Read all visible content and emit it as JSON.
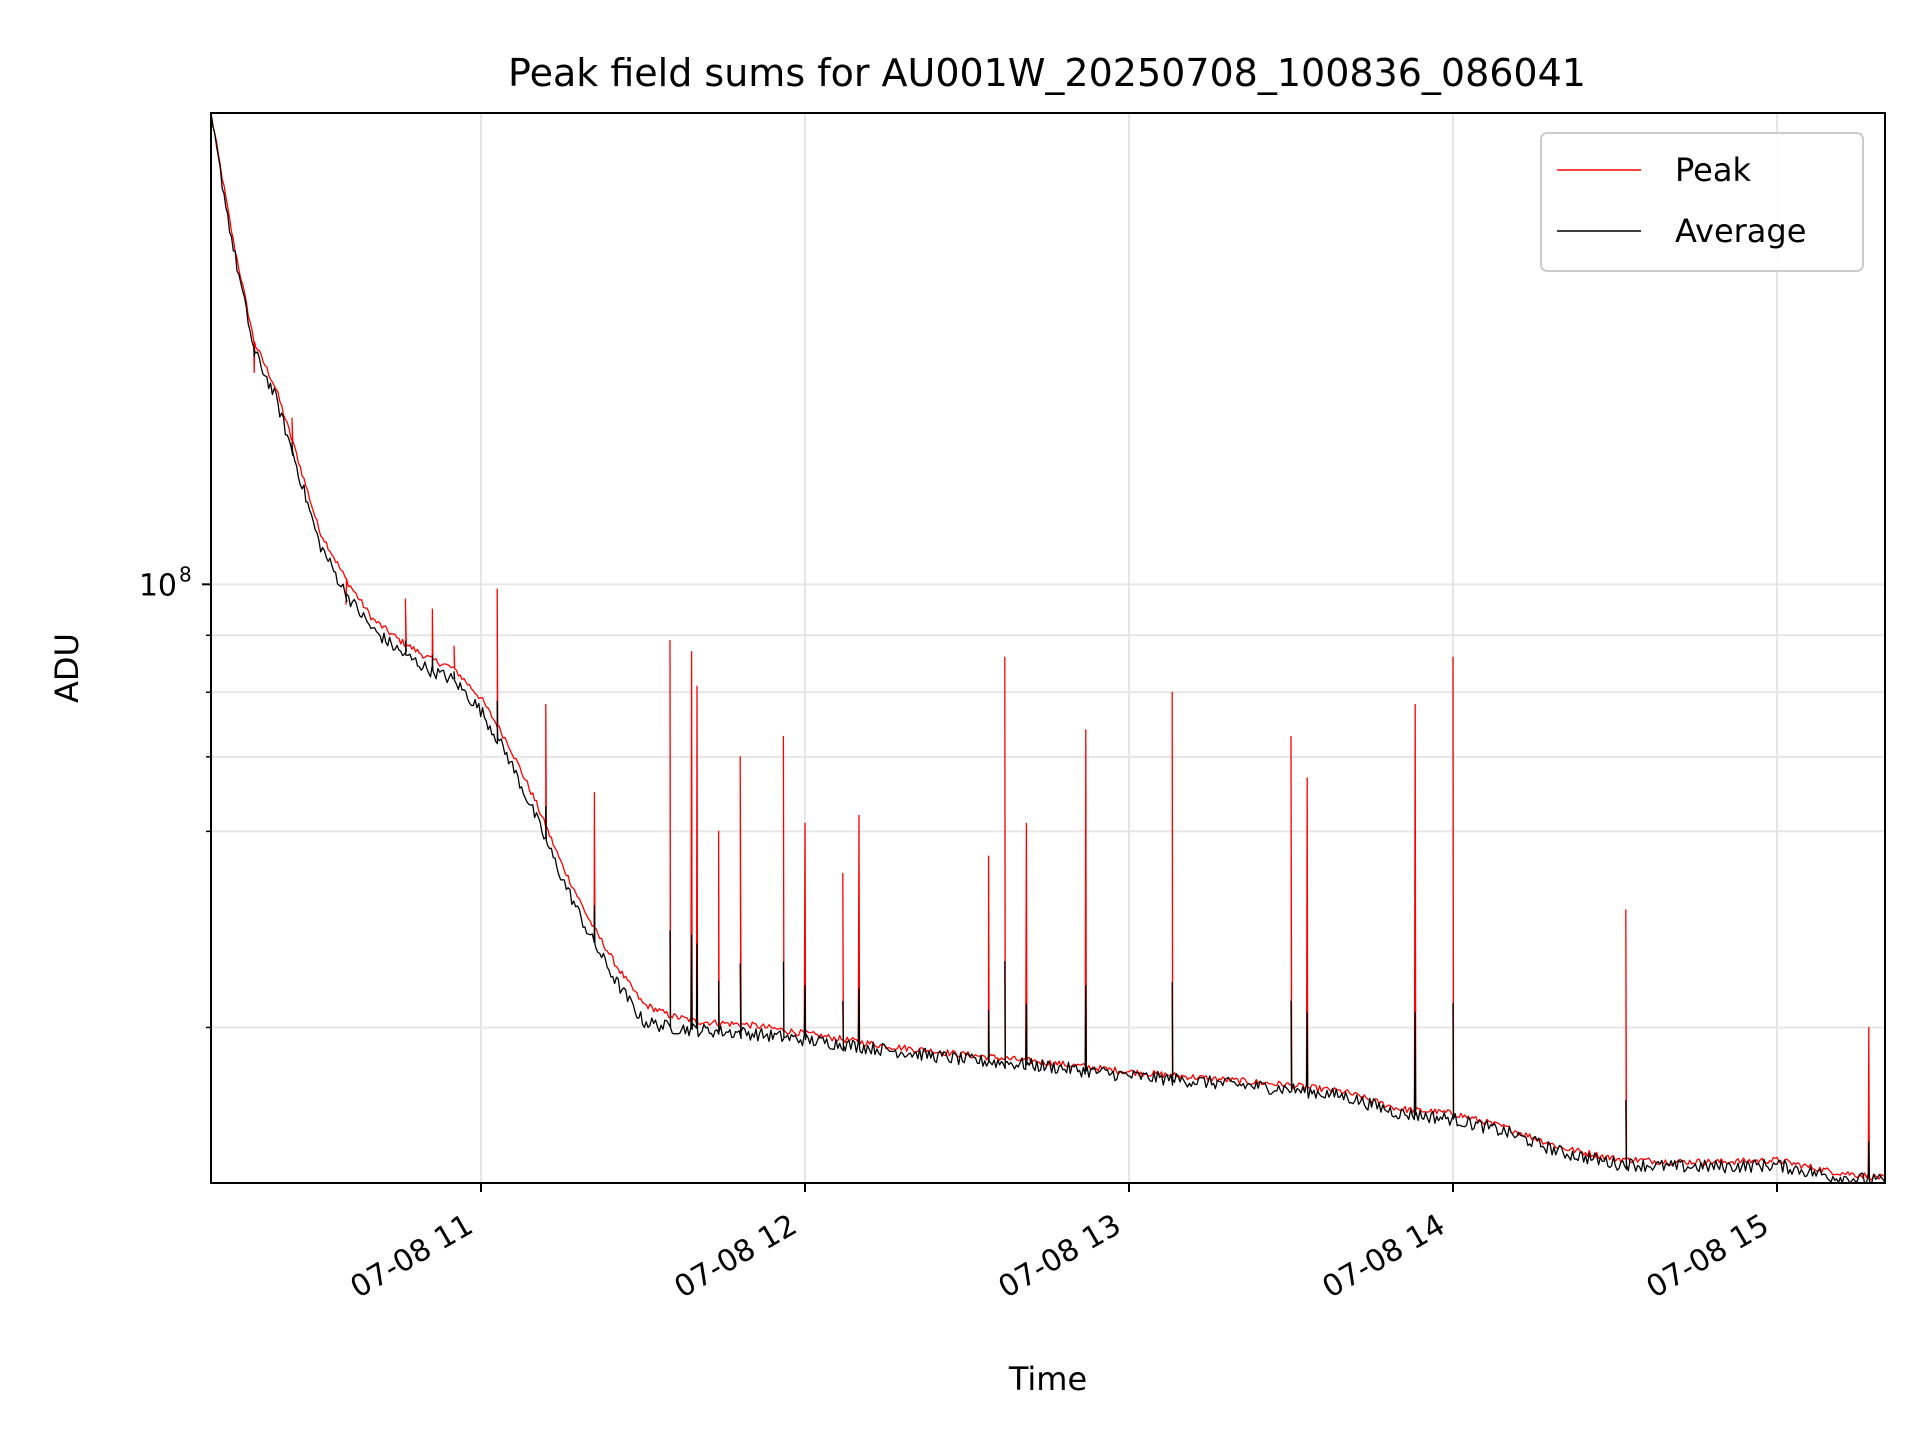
{
  "chart_data": {
    "type": "line",
    "title": "Peak field sums for AU001W_20250708_100836_086041",
    "xlabel": "Time",
    "ylabel": "ADU",
    "yscale": "log",
    "xlim": [
      "2025-07-08 10:10",
      "2025-07-08 15:20"
    ],
    "ylim": [
      29000000,
      265000000
    ],
    "x_ticks": [
      {
        "value": "2025-07-08 11:00",
        "label": "07-08 11"
      },
      {
        "value": "2025-07-08 12:00",
        "label": "07-08 12"
      },
      {
        "value": "2025-07-08 13:00",
        "label": "07-08 13"
      },
      {
        "value": "2025-07-08 14:00",
        "label": "07-08 14"
      },
      {
        "value": "2025-07-08 15:00",
        "label": "07-08 15"
      }
    ],
    "y_ticks": [
      {
        "value": 100000000,
        "label": "10",
        "exponent": "8"
      }
    ],
    "y_minor_ticks": [
      40000000,
      60000000,
      70000000,
      80000000,
      90000000
    ],
    "grid": true,
    "legend": {
      "position": "top-right",
      "entries": [
        "Peak",
        "Average"
      ]
    },
    "colors": {
      "peak": "#ff0000",
      "average": "#000000",
      "grid": "#e6e6e6"
    },
    "series": [
      {
        "name": "Peak",
        "x": [
          "2025-07-08 10:10",
          "2025-07-08 10:14",
          "2025-07-08 10:18",
          "2025-07-08 10:22",
          "2025-07-08 10:26",
          "2025-07-08 10:30",
          "2025-07-08 10:35",
          "2025-07-08 10:40",
          "2025-07-08 10:45",
          "2025-07-08 10:50",
          "2025-07-08 10:55",
          "2025-07-08 11:00",
          "2025-07-08 11:05",
          "2025-07-08 11:10",
          "2025-07-08 11:15",
          "2025-07-08 11:20",
          "2025-07-08 11:25",
          "2025-07-08 11:30",
          "2025-07-08 11:35",
          "2025-07-08 11:40",
          "2025-07-08 11:50",
          "2025-07-08 12:00",
          "2025-07-08 12:15",
          "2025-07-08 12:30",
          "2025-07-08 12:45",
          "2025-07-08 13:00",
          "2025-07-08 13:15",
          "2025-07-08 13:30",
          "2025-07-08 13:40",
          "2025-07-08 13:50",
          "2025-07-08 14:00",
          "2025-07-08 14:10",
          "2025-07-08 14:20",
          "2025-07-08 14:30",
          "2025-07-08 14:40",
          "2025-07-08 14:50",
          "2025-07-08 15:00",
          "2025-07-08 15:10",
          "2025-07-08 15:20"
        ],
        "values": [
          265000000,
          205000000,
          165000000,
          150000000,
          130000000,
          112000000,
          101000000,
          93000000,
          89000000,
          86000000,
          84000000,
          79000000,
          72000000,
          64000000,
          56000000,
          50000000,
          45500000,
          42000000,
          41000000,
          40500000,
          40200000,
          39500000,
          38500000,
          37800000,
          37200000,
          36500000,
          36000000,
          35500000,
          35000000,
          33800000,
          33500000,
          32500000,
          31200000,
          30500000,
          30300000,
          30300000,
          30400000,
          29700000,
          29300000
        ]
      },
      {
        "name": "Average",
        "x": [
          "2025-07-08 10:10",
          "2025-07-08 10:14",
          "2025-07-08 10:18",
          "2025-07-08 10:22",
          "2025-07-08 10:26",
          "2025-07-08 10:30",
          "2025-07-08 10:35",
          "2025-07-08 10:40",
          "2025-07-08 10:45",
          "2025-07-08 10:50",
          "2025-07-08 10:55",
          "2025-07-08 11:00",
          "2025-07-08 11:05",
          "2025-07-08 11:10",
          "2025-07-08 11:15",
          "2025-07-08 11:20",
          "2025-07-08 11:25",
          "2025-07-08 11:30",
          "2025-07-08 11:35",
          "2025-07-08 11:40",
          "2025-07-08 11:50",
          "2025-07-08 12:00",
          "2025-07-08 12:15",
          "2025-07-08 12:30",
          "2025-07-08 12:45",
          "2025-07-08 13:00",
          "2025-07-08 13:15",
          "2025-07-08 13:30",
          "2025-07-08 13:40",
          "2025-07-08 13:50",
          "2025-07-08 14:00",
          "2025-07-08 14:10",
          "2025-07-08 14:20",
          "2025-07-08 14:30",
          "2025-07-08 14:40",
          "2025-07-08 14:50",
          "2025-07-08 15:00",
          "2025-07-08 15:10",
          "2025-07-08 15:20"
        ],
        "values": [
          263000000,
          202000000,
          162000000,
          147000000,
          127000000,
          109000000,
          98000000,
          91000000,
          87000000,
          84000000,
          82000000,
          77000000,
          70000000,
          62000000,
          54500000,
          48500000,
          44000000,
          40500000,
          40000000,
          39800000,
          39500000,
          39000000,
          38200000,
          37400000,
          36900000,
          36200000,
          35700000,
          35200000,
          34700000,
          33500000,
          33100000,
          32200000,
          30900000,
          30200000,
          30000000,
          30000000,
          30100000,
          29400000,
          29100000
        ]
      }
    ],
    "peak_spikes": [
      {
        "x": "2025-07-08 10:18",
        "y": 155000000
      },
      {
        "x": "2025-07-08 10:25",
        "y": 141000000
      },
      {
        "x": "2025-07-08 10:35",
        "y": 96000000
      },
      {
        "x": "2025-07-08 10:46",
        "y": 97000000
      },
      {
        "x": "2025-07-08 10:51",
        "y": 95000000
      },
      {
        "x": "2025-07-08 10:55",
        "y": 88000000
      },
      {
        "x": "2025-07-08 11:03",
        "y": 99000000
      },
      {
        "x": "2025-07-08 11:12",
        "y": 78000000
      },
      {
        "x": "2025-07-08 11:21",
        "y": 65000000
      },
      {
        "x": "2025-07-08 11:35",
        "y": 89000000
      },
      {
        "x": "2025-07-08 11:39",
        "y": 87000000
      },
      {
        "x": "2025-07-08 11:40",
        "y": 81000000
      },
      {
        "x": "2025-07-08 11:44",
        "y": 60000000
      },
      {
        "x": "2025-07-08 11:48",
        "y": 70000000
      },
      {
        "x": "2025-07-08 11:56",
        "y": 73000000
      },
      {
        "x": "2025-07-08 12:00",
        "y": 61000000
      },
      {
        "x": "2025-07-08 12:07",
        "y": 55000000
      },
      {
        "x": "2025-07-08 12:10",
        "y": 62000000
      },
      {
        "x": "2025-07-08 12:34",
        "y": 57000000
      },
      {
        "x": "2025-07-08 12:37",
        "y": 86000000
      },
      {
        "x": "2025-07-08 12:41",
        "y": 61000000
      },
      {
        "x": "2025-07-08 12:52",
        "y": 74000000
      },
      {
        "x": "2025-07-08 13:08",
        "y": 80000000
      },
      {
        "x": "2025-07-08 13:30",
        "y": 73000000
      },
      {
        "x": "2025-07-08 13:33",
        "y": 67000000
      },
      {
        "x": "2025-07-08 13:53",
        "y": 78000000
      },
      {
        "x": "2025-07-08 14:00",
        "y": 86000000
      },
      {
        "x": "2025-07-08 14:32",
        "y": 51000000
      },
      {
        "x": "2025-07-08 15:17",
        "y": 40000000
      }
    ]
  }
}
